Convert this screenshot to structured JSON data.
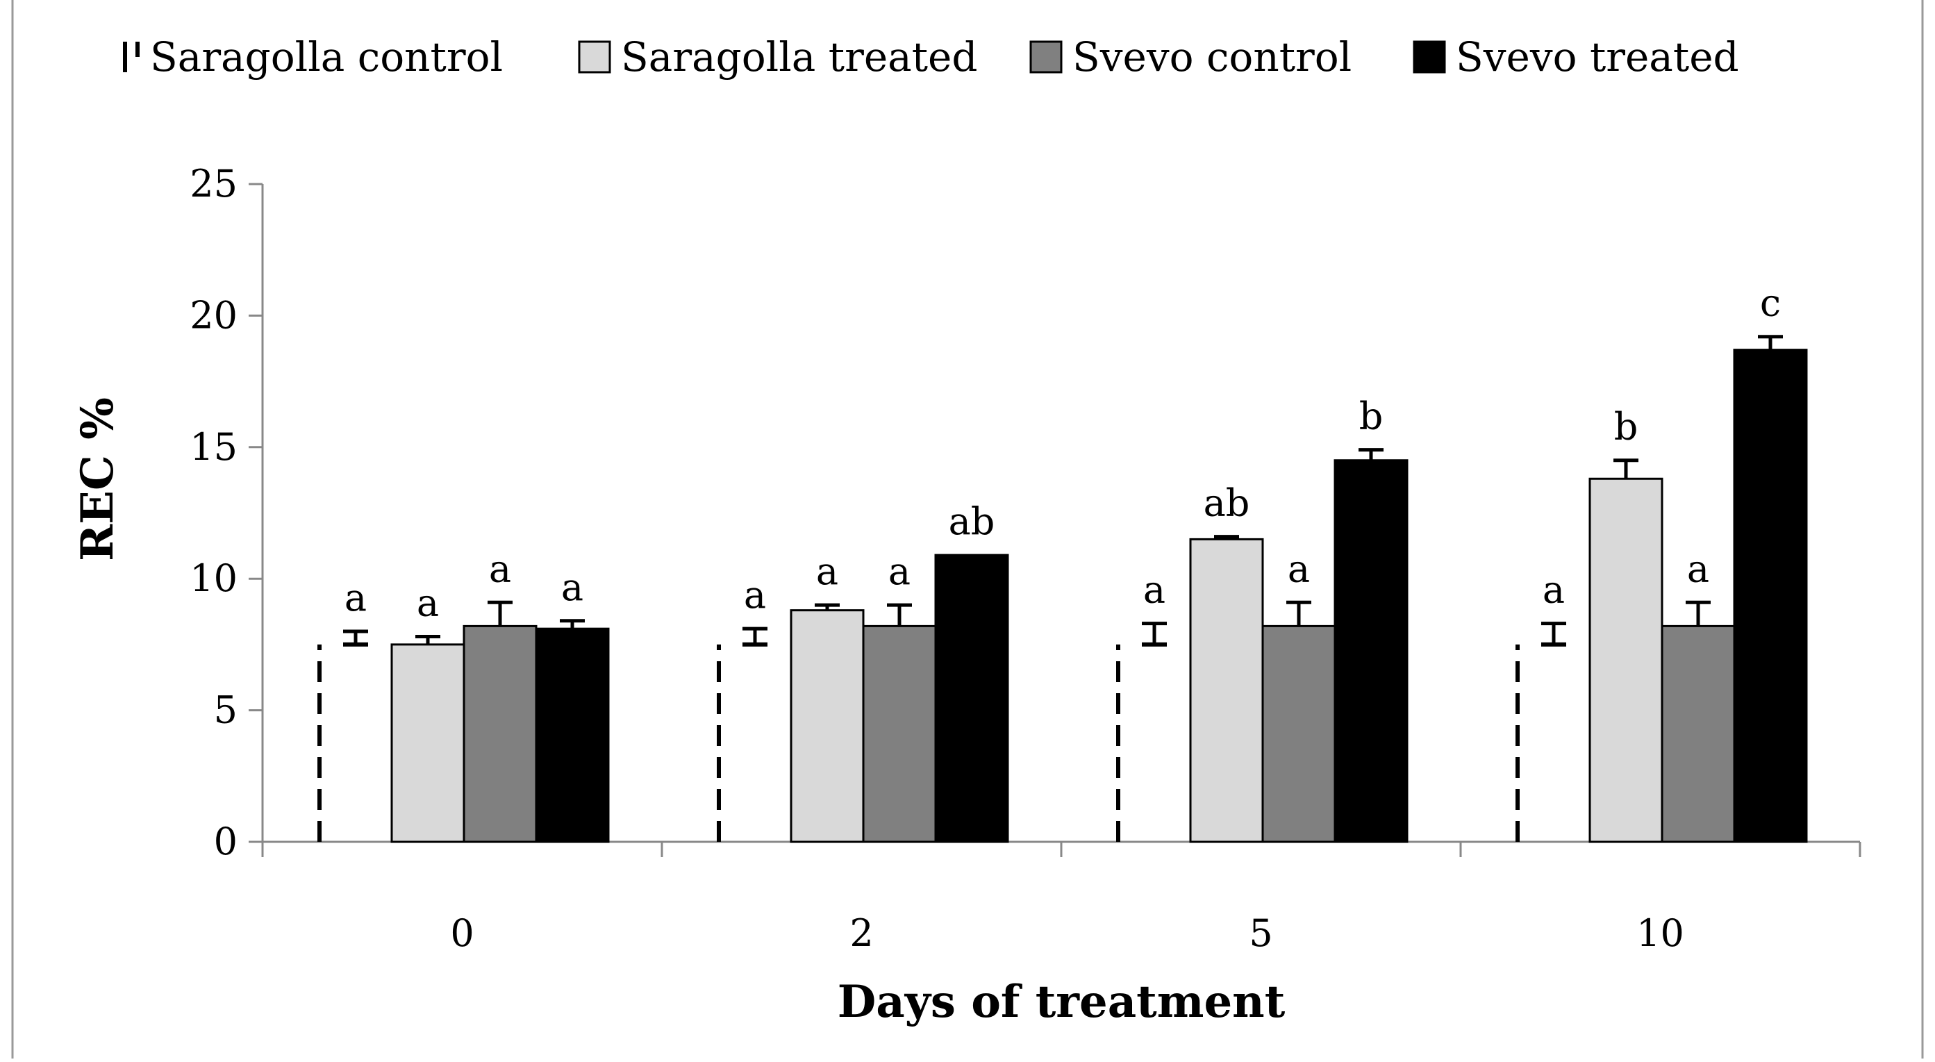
{
  "chart_data": {
    "type": "bar",
    "ylabel": "REC %",
    "xlabel": "Days of treatment",
    "ylim": [
      0,
      25
    ],
    "yticks": [
      0,
      5,
      10,
      15,
      20,
      25
    ],
    "categories": [
      "0",
      "2",
      "5",
      "10"
    ],
    "legend_position": "top",
    "series": [
      {
        "name": "Saragolla control",
        "style": "dashed-outline",
        "color": "#ffffff",
        "values": [
          7.5,
          7.5,
          7.5,
          7.5
        ],
        "errors": [
          0.5,
          0.6,
          0.8,
          0.8
        ],
        "letters": [
          "a",
          "a",
          "a",
          "a"
        ]
      },
      {
        "name": "Saragolla treated",
        "style": "solid",
        "color": "#d9d9d9",
        "values": [
          7.5,
          8.8,
          11.5,
          13.8
        ],
        "errors": [
          0.3,
          0.2,
          0.1,
          0.7
        ],
        "letters": [
          "a",
          "a",
          "ab",
          "b"
        ]
      },
      {
        "name": "Svevo control",
        "style": "solid",
        "color": "#808080",
        "values": [
          8.2,
          8.2,
          8.2,
          8.2
        ],
        "errors": [
          0.9,
          0.8,
          0.9,
          0.9
        ],
        "letters": [
          "a",
          "a",
          "a",
          "a"
        ]
      },
      {
        "name": "Svevo treated",
        "style": "solid",
        "color": "#000000",
        "values": [
          8.1,
          10.9,
          14.5,
          18.7
        ],
        "errors": [
          0.3,
          0.0,
          0.4,
          0.5
        ],
        "letters": [
          "a",
          "ab",
          "b",
          "c"
        ]
      }
    ]
  }
}
